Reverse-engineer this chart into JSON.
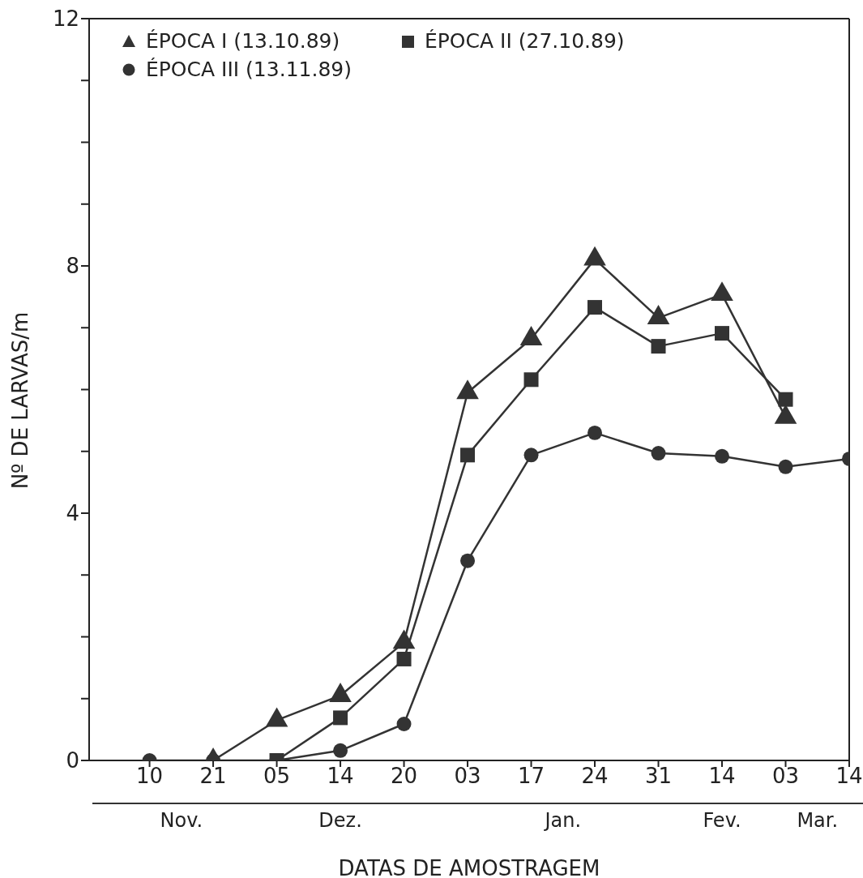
{
  "chart_data": {
    "type": "line",
    "xlabel": "DATAS DE AMOSTRAGEM",
    "ylabel": "Nº DE LARVAS/m",
    "categories": [
      "10",
      "21",
      "05",
      "14",
      "20",
      "03",
      "17",
      "24",
      "31",
      "14",
      "03",
      "14"
    ],
    "series": [
      {
        "name": "ÉPOCA I (13.10.89)",
        "color": "#333333",
        "marker": "triangle",
        "values": [
          null,
          0,
          0.65,
          1.05,
          1.91,
          5.95,
          6.82,
          8.11,
          7.16,
          7.54,
          5.55,
          null
        ]
      },
      {
        "name": "ÉPOCA II (27.10.89)",
        "color": "#333333",
        "marker": "square",
        "values": [
          null,
          null,
          0,
          0.69,
          1.64,
          4.94,
          6.16,
          7.33,
          6.7,
          6.91,
          5.84,
          null
        ]
      },
      {
        "name": "ÉPOCA III (13.11.89)",
        "color": "#333333",
        "marker": "circle",
        "values": [
          0,
          0,
          0,
          0.16,
          0.59,
          3.23,
          4.94,
          5.3,
          4.97,
          4.92,
          4.75,
          4.88
        ]
      }
    ],
    "ylim": [
      0,
      12
    ],
    "yticks": [
      0,
      {
        "value": 1,
        "label": null
      },
      {
        "value": 2,
        "label": null
      },
      {
        "value": 3,
        "label": null
      },
      4,
      {
        "value": 5,
        "label": null
      },
      {
        "value": 6,
        "label": null
      },
      {
        "value": 7,
        "label": null
      },
      8,
      {
        "value": 9,
        "label": null
      },
      {
        "value": 10,
        "label": null
      },
      {
        "value": 11,
        "label": null
      },
      12
    ],
    "annotations": [
      "Nov.",
      "Dez.",
      "Jan.",
      "Fev.",
      "Mar."
    ],
    "legend": "top left",
    "grid": false,
    "line_style": "solid"
  }
}
